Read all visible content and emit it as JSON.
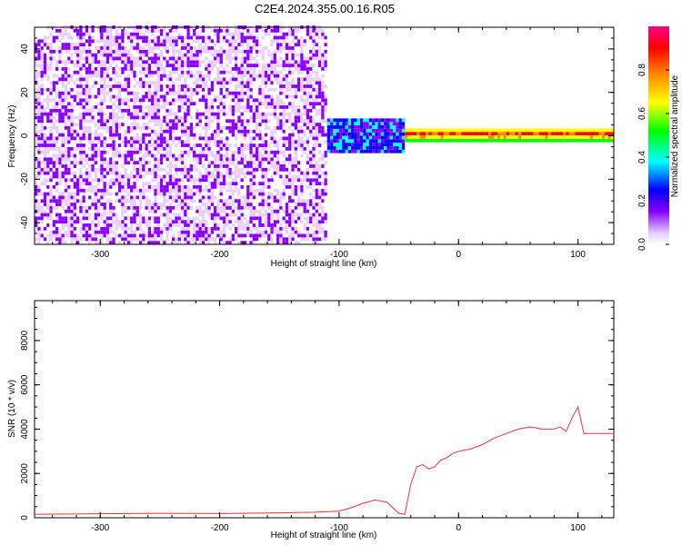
{
  "figure": {
    "title": "C2E4.2024.355.00.16.R05"
  },
  "chart_data": [
    {
      "type": "heatmap",
      "xlabel": "Height of straight line (km)",
      "ylabel": "Frequency (Hz)",
      "xlim": [
        -355,
        130
      ],
      "ylim": [
        -50,
        50
      ],
      "xticks": [
        -300,
        -200,
        -100,
        0,
        100
      ],
      "yticks": [
        -40,
        -20,
        0,
        20,
        40
      ],
      "colorbar": {
        "label": "Normalized spectral amplitude",
        "range": [
          0,
          1
        ],
        "ticks": [
          0.0,
          0.2,
          0.4,
          0.6,
          0.8
        ],
        "colormap": [
          "#ffffff",
          "#e8d0ff",
          "#8800ff",
          "#0000ff",
          "#00ffff",
          "#00ff00",
          "#ffff00",
          "#ff8800",
          "#ff0000",
          "#ff0088"
        ]
      },
      "description_regions": [
        {
          "x_range": [
            -355,
            -110
          ],
          "f_range": [
            -50,
            50
          ],
          "amplitude": [
            0.05,
            0.25
          ]
        },
        {
          "x_range": [
            -110,
            -45
          ],
          "f_range": [
            -8,
            8
          ],
          "amplitude": [
            0.2,
            0.45
          ]
        },
        {
          "x_range": [
            -45,
            130
          ],
          "f_range": [
            -3,
            3
          ],
          "amplitude": [
            0.5,
            0.95
          ]
        }
      ]
    },
    {
      "type": "line",
      "xlabel": "Height of straight line (km)",
      "ylabel": "SNR (10 * v/v)",
      "xlim": [
        -355,
        130
      ],
      "ylim": [
        0,
        9800
      ],
      "xticks": [
        -300,
        -200,
        -100,
        0,
        100
      ],
      "yticks": [
        0,
        2000,
        4000,
        6000,
        8000
      ],
      "line_color": "#ee3333",
      "series": [
        {
          "x": [
            -355,
            -300,
            -250,
            -200,
            -150,
            -120,
            -100,
            -90,
            -80,
            -70,
            -60,
            -50,
            -45,
            -40,
            -35,
            -30,
            -25,
            -20,
            -15,
            -10,
            -5,
            0,
            10,
            20,
            30,
            40,
            50,
            60,
            70,
            80,
            85,
            90,
            95,
            100,
            105,
            110,
            120,
            130
          ],
          "y": [
            150,
            180,
            200,
            190,
            220,
            250,
            300,
            450,
            650,
            800,
            700,
            200,
            150,
            1500,
            2300,
            2400,
            2200,
            2300,
            2600,
            2700,
            2900,
            3000,
            3100,
            3300,
            3600,
            3800,
            4000,
            4100,
            4000,
            4000,
            4100,
            3900,
            4500,
            5000,
            3800,
            3800,
            3800,
            3800
          ]
        }
      ]
    }
  ]
}
